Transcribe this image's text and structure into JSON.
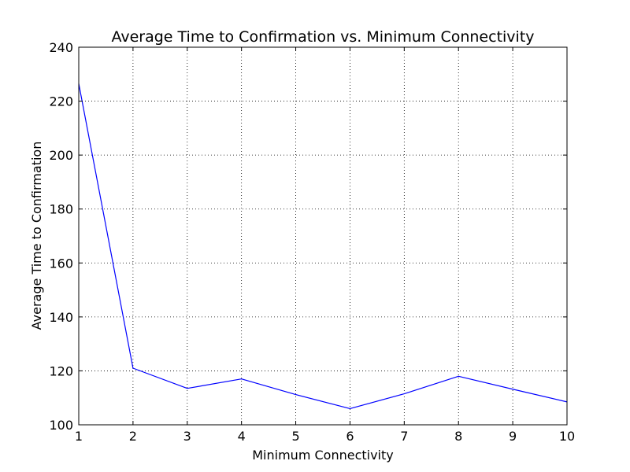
{
  "chart_data": {
    "type": "line",
    "title": "Average Time to Confirmation vs. Minimum Connectivity",
    "xlabel": "Minimum Connectivity",
    "ylabel": "Average Time to Confirmation",
    "xlim": [
      1,
      10
    ],
    "ylim": [
      100,
      240
    ],
    "xticks": [
      1,
      2,
      3,
      4,
      5,
      6,
      7,
      8,
      9,
      10
    ],
    "yticks": [
      100,
      120,
      140,
      160,
      180,
      200,
      220,
      240
    ],
    "grid": true,
    "series": [
      {
        "color": "#0000ff",
        "x": [
          1,
          2,
          3,
          4,
          5,
          6,
          7,
          8,
          9,
          10
        ],
        "y": [
          226.5,
          121,
          113.5,
          117,
          111.2,
          106,
          111.5,
          118,
          113.2,
          108.5
        ]
      }
    ]
  }
}
